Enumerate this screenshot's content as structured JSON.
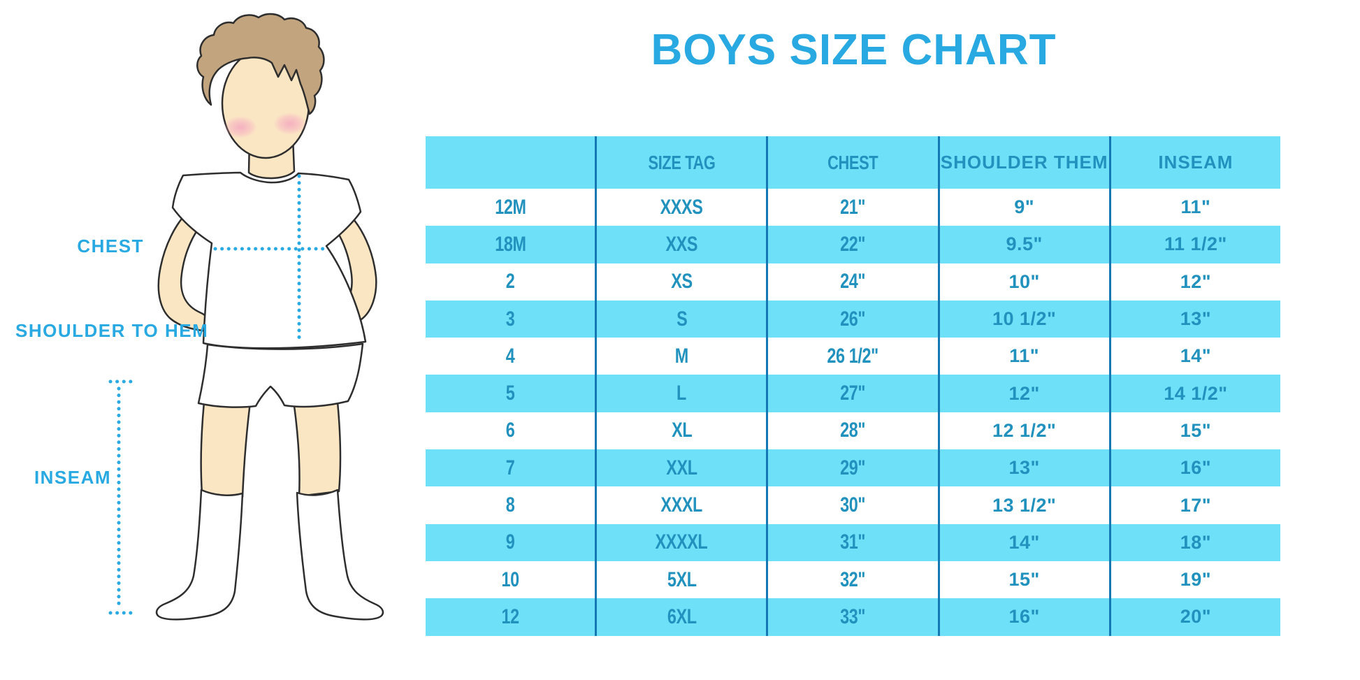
{
  "title": "BOYS SIZE CHART",
  "figure": {
    "labels": {
      "chest": "CHEST",
      "shoulder_to_hem": "SHOULDER TO HEM",
      "inseam": "INSEAM"
    }
  },
  "table": {
    "headers": [
      "",
      "SIZE TAG",
      "CHEST",
      "SHOULDER THEM",
      "INSEAM"
    ],
    "rows": [
      [
        "12M",
        "XXXS",
        "21\"",
        "9\"",
        "11\""
      ],
      [
        "18M",
        "XXS",
        "22\"",
        "9.5\"",
        "11 1/2\""
      ],
      [
        "2",
        "XS",
        "24\"",
        "10\"",
        "12\""
      ],
      [
        "3",
        "S",
        "26\"",
        "10 1/2\"",
        "13\""
      ],
      [
        "4",
        "M",
        "26 1/2\"",
        "11\"",
        "14\""
      ],
      [
        "5",
        "L",
        "27\"",
        "12\"",
        "14 1/2\""
      ],
      [
        "6",
        "XL",
        "28\"",
        "12 1/2\"",
        "15\""
      ],
      [
        "7",
        "XXL",
        "29\"",
        "13\"",
        "16\""
      ],
      [
        "8",
        "XXXL",
        "30\"",
        "13 1/2\"",
        "17\""
      ],
      [
        "9",
        "XXXXL",
        "31\"",
        "14\"",
        "18\""
      ],
      [
        "10",
        "5XL",
        "32\"",
        "15\"",
        "19\""
      ],
      [
        "12",
        "6XL",
        "33\"",
        "16\"",
        "20\""
      ]
    ]
  },
  "colors": {
    "title_blue": "#29a9e1",
    "label_blue": "#29a9e1",
    "row_cyan": "#6ee1f8",
    "table_text": "#2191be",
    "divider_blue": "#1478b4",
    "dotted_line": "#2baae2",
    "hair": "#c2a57e",
    "skin": "#fbe6c4",
    "cheek": "#f5aec0",
    "outline": "#2e2e2e"
  }
}
